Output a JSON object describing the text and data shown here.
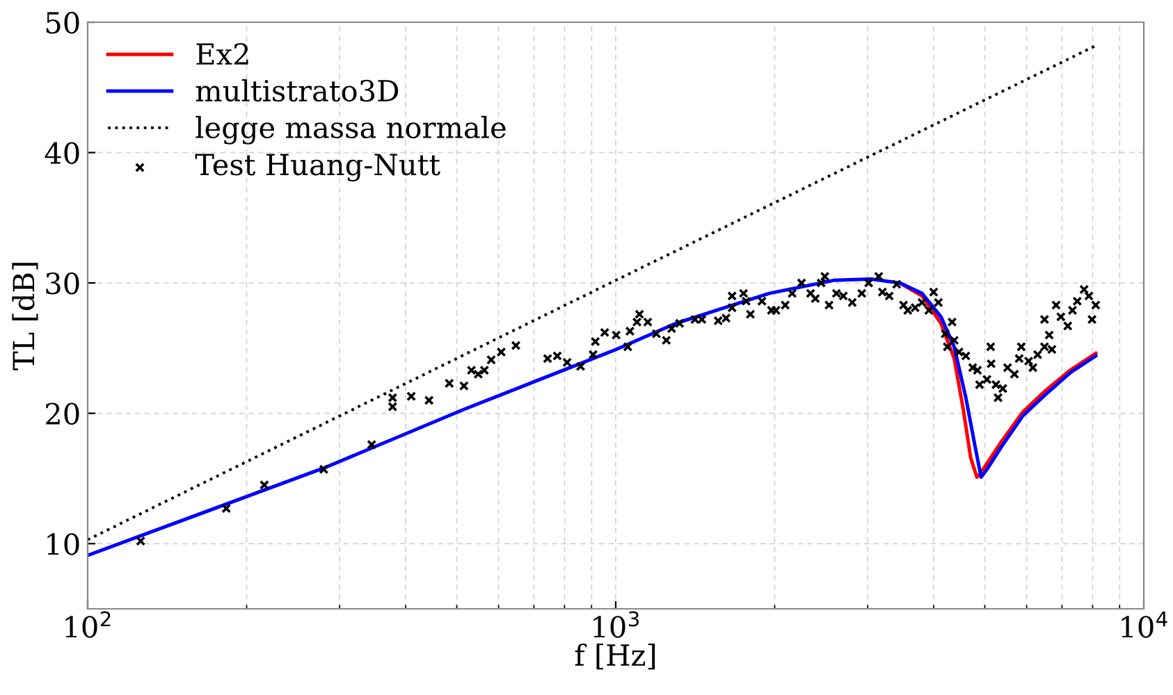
{
  "chart_data": {
    "type": "line",
    "xlabel": "f [Hz]",
    "ylabel": "TL [dB]",
    "log": "x",
    "xlim": [
      100,
      10000
    ],
    "ylim": [
      5,
      50
    ],
    "xticks": [
      {
        "value": 100,
        "label": "10$^{2}$"
      },
      {
        "value": 1000,
        "label": "10$^{3}$"
      },
      {
        "value": 10000,
        "label": "10$^{4}$"
      }
    ],
    "yticks": [
      10,
      20,
      30,
      40,
      50
    ],
    "grid": true,
    "legend": "top left",
    "series": [
      {
        "name": "Ex2",
        "color": "#ff0000",
        "line_style": "solid",
        "x": [
          3450,
          3802,
          4130,
          4375,
          4560,
          4700,
          4830,
          4887,
          5370,
          5900,
          6540,
          7250,
          8110
        ],
        "values": [
          30.0,
          29.0,
          26.9,
          24.2,
          20.1,
          16.6,
          15.1,
          15.3,
          17.8,
          20.1,
          21.8,
          23.3,
          24.6
        ]
      },
      {
        "name": "multistrato3D",
        "color": "#0000ff",
        "line_style": "solid",
        "x": [
          100,
          280,
          516,
          1002,
          1300,
          1953,
          2588,
          3045,
          3450,
          3802,
          4130,
          4375,
          4603,
          4800,
          4920,
          5047,
          5370,
          5900,
          6540,
          7250,
          8110
        ],
        "values": [
          9.1,
          15.8,
          20.3,
          24.9,
          26.9,
          29.2,
          30.2,
          30.3,
          30.0,
          29.2,
          27.4,
          25.1,
          21.2,
          17.3,
          15.1,
          15.7,
          17.4,
          19.8,
          21.5,
          23.1,
          24.4
        ]
      },
      {
        "name": "legge massa normale",
        "color": "#000000",
        "line_style": "dotted",
        "x": [
          100,
          1000,
          8110
        ],
        "values": [
          10.3,
          30.2,
          48.2
        ]
      },
      {
        "name": "Test Huang-Nutt",
        "type": "scatter",
        "color": "#000000",
        "marker": "cross",
        "x": [
          126,
          183,
          216,
          280,
          345,
          378,
          378,
          410,
          443,
          484,
          516,
          533,
          549,
          564,
          581,
          607,
          647,
          743,
          775,
          809,
          858,
          906,
          915,
          953,
          1002,
          1054,
          1064,
          1097,
          1109,
          1150,
          1194,
          1247,
          1276,
          1321,
          1413,
          1456,
          1563,
          1618,
          1661,
          1661,
          1746,
          1766,
          1799,
          1892,
          1972,
          2011,
          2094,
          2158,
          2249,
          2339,
          2388,
          2449,
          2489,
          2535,
          2618,
          2698,
          2805,
          2924,
          3013,
          3148,
          3199,
          3296,
          3404,
          3508,
          3573,
          3690,
          3802,
          3917,
          4000,
          4083,
          4207,
          4246,
          4335,
          4375,
          4467,
          4603,
          4742,
          4842,
          4887,
          5047,
          5129,
          5140,
          5248,
          5297,
          5408,
          5521,
          5689,
          5808,
          5861,
          6053,
          6166,
          6295,
          6486,
          6486,
          6622,
          6699,
          6823,
          6966,
          7178,
          7328,
          7482,
          7709,
          7870,
          7980,
          8110
        ],
        "values": [
          10.2,
          12.7,
          14.5,
          15.7,
          17.6,
          21.2,
          20.5,
          21.3,
          21.0,
          22.3,
          22.1,
          23.3,
          23.0,
          23.3,
          24.1,
          24.7,
          25.2,
          24.2,
          24.4,
          23.9,
          23.6,
          24.5,
          25.5,
          26.2,
          26.0,
          25.1,
          26.3,
          27.0,
          27.6,
          27.0,
          26.1,
          25.6,
          26.5,
          26.9,
          27.2,
          27.2,
          27.1,
          27.3,
          28.1,
          29.0,
          29.2,
          28.6,
          27.6,
          28.6,
          27.9,
          27.9,
          28.3,
          29.2,
          30.0,
          29.2,
          28.8,
          30.0,
          30.5,
          28.3,
          29.2,
          29.0,
          28.5,
          29.2,
          30.0,
          30.5,
          29.3,
          29.0,
          29.9,
          28.3,
          27.9,
          28.1,
          28.5,
          27.9,
          29.3,
          28.5,
          26.1,
          25.1,
          27.0,
          25.6,
          24.7,
          24.4,
          23.5,
          23.3,
          22.2,
          22.6,
          25.1,
          23.8,
          22.2,
          21.2,
          21.9,
          23.5,
          23.0,
          24.2,
          25.1,
          24.0,
          23.5,
          24.5,
          25.1,
          27.2,
          26.0,
          24.9,
          28.3,
          27.4,
          26.7,
          27.9,
          28.6,
          29.5,
          29.0,
          27.2,
          28.3
        ]
      }
    ]
  }
}
